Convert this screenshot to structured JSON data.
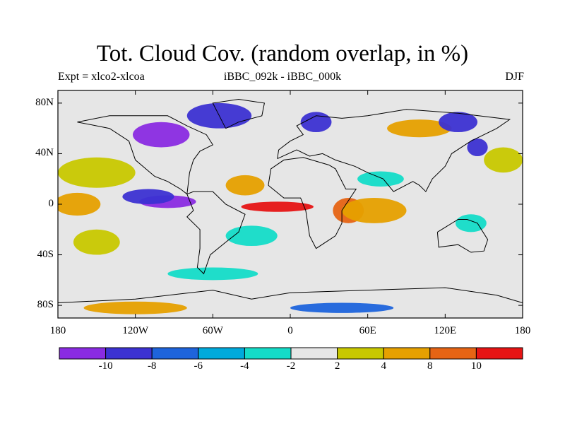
{
  "title": "Tot. Cloud Cov. (random overlap, in %)",
  "subtitle_left": "Expt = xlco2-xlcoa",
  "subtitle_center": "iBBC_092k - iBBC_000k",
  "subtitle_right": "DJF",
  "map": {
    "projection": "cylindrical equidistant",
    "lon_range": [
      -180,
      180
    ],
    "lat_range": [
      -90,
      90
    ],
    "y_ticks": [
      {
        "value": 80,
        "label": "80N"
      },
      {
        "value": 40,
        "label": "40N"
      },
      {
        "value": 0,
        "label": "0"
      },
      {
        "value": -40,
        "label": "40S"
      },
      {
        "value": -80,
        "label": "80S"
      }
    ],
    "x_ticks": [
      {
        "value": -180,
        "label": "180"
      },
      {
        "value": -120,
        "label": "120W"
      },
      {
        "value": -60,
        "label": "60W"
      },
      {
        "value": 0,
        "label": "0"
      },
      {
        "value": 60,
        "label": "60E"
      },
      {
        "value": 120,
        "label": "120E"
      },
      {
        "value": 180,
        "label": "180"
      }
    ]
  },
  "colorbar": {
    "colors": [
      "#8a2be2",
      "#3c32d2",
      "#1e64dc",
      "#00aadc",
      "#14dcc8",
      "#e6e6e6",
      "#c8c800",
      "#e6a000",
      "#e66414",
      "#e61414"
    ],
    "labels": [
      {
        "boundary": 1,
        "text": "-10"
      },
      {
        "boundary": 2,
        "text": "-8"
      },
      {
        "boundary": 3,
        "text": "-6"
      },
      {
        "boundary": 4,
        "text": "-4"
      },
      {
        "boundary": 5,
        "text": "-2"
      },
      {
        "boundary": 6,
        "text": "2"
      },
      {
        "boundary": 7,
        "text": "4"
      },
      {
        "boundary": 8,
        "text": "8"
      },
      {
        "boundary": 9,
        "text": "10"
      }
    ]
  },
  "regions": [
    {
      "name": "pacific-north-warm",
      "color": "#c8c800",
      "lon": -150,
      "lat": 25,
      "rx": 30,
      "ry": 12
    },
    {
      "name": "pacific-west-orange",
      "color": "#e6a000",
      "lon": -165,
      "lat": 0,
      "rx": 18,
      "ry": 9
    },
    {
      "name": "pacific-east-cold",
      "color": "#8a2be2",
      "lon": -95,
      "lat": 2,
      "rx": 22,
      "ry": 5
    },
    {
      "name": "pacific-east-blue",
      "color": "#3c32d2",
      "lon": -110,
      "lat": 6,
      "rx": 20,
      "ry": 6
    },
    {
      "name": "north-america-cold",
      "color": "#8a2be2",
      "lon": -100,
      "lat": 55,
      "rx": 22,
      "ry": 10
    },
    {
      "name": "greenland-blue",
      "color": "#3c32d2",
      "lon": -55,
      "lat": 70,
      "rx": 25,
      "ry": 10
    },
    {
      "name": "atlantic-orange",
      "color": "#e6a000",
      "lon": -35,
      "lat": 15,
      "rx": 15,
      "ry": 8
    },
    {
      "name": "atlantic-red-band",
      "color": "#e61414",
      "lon": -10,
      "lat": -2,
      "rx": 28,
      "ry": 4
    },
    {
      "name": "atlantic-south-teal",
      "color": "#14dcc8",
      "lon": -30,
      "lat": -25,
      "rx": 20,
      "ry": 8
    },
    {
      "name": "africa-east-red",
      "color": "#e66414",
      "lon": 45,
      "lat": -5,
      "rx": 12,
      "ry": 10
    },
    {
      "name": "indian-orange",
      "color": "#e6a000",
      "lon": 65,
      "lat": -5,
      "rx": 25,
      "ry": 10
    },
    {
      "name": "indian-teal",
      "color": "#14dcc8",
      "lon": 70,
      "lat": 20,
      "rx": 18,
      "ry": 6
    },
    {
      "name": "asia-orange",
      "color": "#e6a000",
      "lon": 100,
      "lat": 60,
      "rx": 25,
      "ry": 7
    },
    {
      "name": "asia-blue",
      "color": "#3c32d2",
      "lon": 130,
      "lat": 65,
      "rx": 15,
      "ry": 8
    },
    {
      "name": "pacific-northwest-yellow",
      "color": "#c8c800",
      "lon": 165,
      "lat": 35,
      "rx": 15,
      "ry": 10
    },
    {
      "name": "japan-blue",
      "color": "#3c32d2",
      "lon": 145,
      "lat": 45,
      "rx": 8,
      "ry": 7
    },
    {
      "name": "australia-teal",
      "color": "#14dcc8",
      "lon": 140,
      "lat": -15,
      "rx": 12,
      "ry": 7
    },
    {
      "name": "southern-ocean-teal",
      "color": "#14dcc8",
      "lon": -60,
      "lat": -55,
      "rx": 35,
      "ry": 5
    },
    {
      "name": "south-pacific-yellow",
      "color": "#c8c800",
      "lon": -150,
      "lat": -30,
      "rx": 18,
      "ry": 10
    },
    {
      "name": "antarctic-orange",
      "color": "#e6a000",
      "lon": -120,
      "lat": -82,
      "rx": 40,
      "ry": 5
    },
    {
      "name": "antarctic-blue",
      "color": "#1e64dc",
      "lon": 40,
      "lat": -82,
      "rx": 40,
      "ry": 4
    },
    {
      "name": "europe-blue",
      "color": "#3c32d2",
      "lon": 20,
      "lat": 65,
      "rx": 12,
      "ry": 8
    }
  ],
  "legend_note": ""
}
